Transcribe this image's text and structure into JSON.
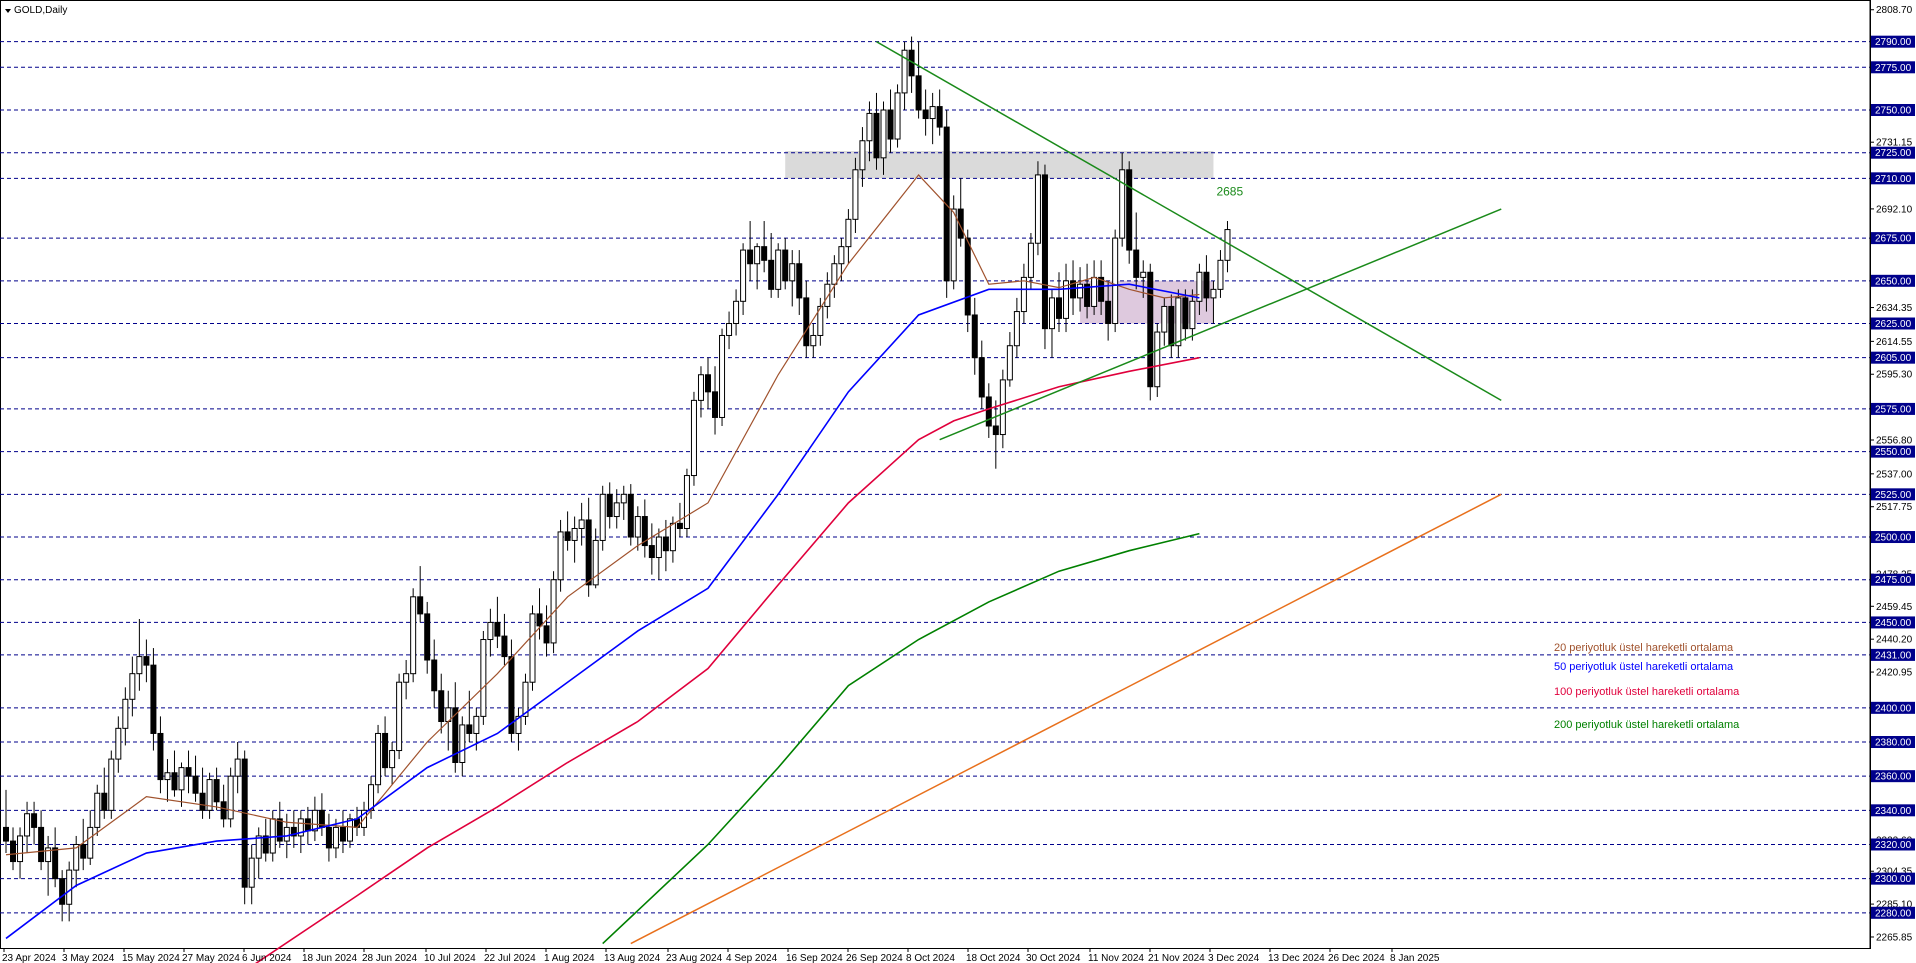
{
  "title": "GOLD,Daily",
  "colors": {
    "ema20": "#a0522d",
    "ema50": "#0000ff",
    "ema100": "#e0003c",
    "ema200": "#008000",
    "trend_green": "#1a8a1a",
    "trend_orange": "#e8701c",
    "resistance_zone": "#d3d3d3",
    "support_zone": "#d8bfd8",
    "level_line": "#00008b"
  },
  "chart_data": {
    "type": "candlestick",
    "symbol": "GOLD",
    "timeframe": "Daily",
    "x_labels": [
      "23 Apr 2024",
      "3 May 2024",
      "15 May 2024",
      "27 May 2024",
      "6 Jun 2024",
      "18 Jun 2024",
      "28 Jun 2024",
      "10 Jul 2024",
      "22 Jul 2024",
      "1 Aug 2024",
      "13 Aug 2024",
      "23 Aug 2024",
      "4 Sep 2024",
      "16 Sep 2024",
      "26 Sep 2024",
      "8 Oct 2024",
      "18 Oct 2024",
      "30 Oct 2024",
      "11 Nov 2024",
      "21 Nov 2024",
      "3 Dec 2024",
      "13 Dec 2024",
      "26 Dec 2024",
      "8 Jan 2025"
    ],
    "y_range": [
      2259.4,
      2814.4
    ],
    "price_axis_labels": [
      "2808.70",
      "2731.15",
      "2692.10",
      "2634.35",
      "2614.55",
      "2595.30",
      "2556.80",
      "2537.00",
      "2517.75",
      "2478.25",
      "2459.45",
      "2440.20",
      "2420.95",
      "2322.60",
      "2304.35",
      "2285.10",
      "2265.85"
    ],
    "price_levels": [
      "2790.00",
      "2775.00",
      "2750.00",
      "2725.00",
      "2710.00",
      "2675.00",
      "2650.00",
      "2625.00",
      "2605.00",
      "2575.00",
      "2550.00",
      "2525.00",
      "2500.00",
      "2475.00",
      "2450.00",
      "2431.00",
      "2400.00",
      "2380.00",
      "2360.00",
      "2340.00",
      "2320.00",
      "2300.00",
      "2280.00"
    ],
    "candles": [
      [
        2330,
        2352,
        2315,
        2322
      ],
      [
        2322,
        2330,
        2305,
        2310
      ],
      [
        2310,
        2330,
        2300,
        2325
      ],
      [
        2325,
        2345,
        2315,
        2338
      ],
      [
        2338,
        2345,
        2320,
        2330
      ],
      [
        2330,
        2340,
        2305,
        2310
      ],
      [
        2310,
        2325,
        2290,
        2318
      ],
      [
        2318,
        2330,
        2295,
        2300
      ],
      [
        2300,
        2305,
        2275,
        2285
      ],
      [
        2285,
        2310,
        2275,
        2305
      ],
      [
        2305,
        2325,
        2295,
        2320
      ],
      [
        2320,
        2335,
        2305,
        2312
      ],
      [
        2312,
        2340,
        2308,
        2330
      ],
      [
        2330,
        2355,
        2325,
        2350
      ],
      [
        2350,
        2365,
        2335,
        2340
      ],
      [
        2340,
        2375,
        2335,
        2370
      ],
      [
        2370,
        2395,
        2362,
        2388
      ],
      [
        2388,
        2412,
        2378,
        2405
      ],
      [
        2405,
        2430,
        2395,
        2420
      ],
      [
        2420,
        2452,
        2410,
        2430
      ],
      [
        2430,
        2440,
        2415,
        2425
      ],
      [
        2425,
        2435,
        2375,
        2385
      ],
      [
        2385,
        2395,
        2350,
        2358
      ],
      [
        2358,
        2370,
        2345,
        2362
      ],
      [
        2362,
        2375,
        2348,
        2352
      ],
      [
        2352,
        2368,
        2342,
        2365
      ],
      [
        2365,
        2375,
        2350,
        2360
      ],
      [
        2360,
        2372,
        2345,
        2350
      ],
      [
        2350,
        2365,
        2335,
        2340
      ],
      [
        2340,
        2362,
        2335,
        2358
      ],
      [
        2358,
        2365,
        2340,
        2345
      ],
      [
        2345,
        2355,
        2330,
        2335
      ],
      [
        2335,
        2365,
        2330,
        2360
      ],
      [
        2360,
        2380,
        2350,
        2370
      ],
      [
        2370,
        2375,
        2285,
        2295
      ],
      [
        2295,
        2320,
        2285,
        2312
      ],
      [
        2312,
        2330,
        2300,
        2325
      ],
      [
        2325,
        2335,
        2310,
        2315
      ],
      [
        2315,
        2340,
        2310,
        2335
      ],
      [
        2335,
        2345,
        2318,
        2322
      ],
      [
        2322,
        2338,
        2312,
        2330
      ],
      [
        2330,
        2340,
        2318,
        2325
      ],
      [
        2325,
        2340,
        2315,
        2335
      ],
      [
        2335,
        2342,
        2320,
        2328
      ],
      [
        2328,
        2348,
        2322,
        2340
      ],
      [
        2340,
        2350,
        2325,
        2330
      ],
      [
        2330,
        2338,
        2310,
        2318
      ],
      [
        2318,
        2335,
        2312,
        2330
      ],
      [
        2330,
        2340,
        2315,
        2322
      ],
      [
        2322,
        2338,
        2318,
        2335
      ],
      [
        2335,
        2342,
        2325,
        2330
      ],
      [
        2330,
        2345,
        2325,
        2340
      ],
      [
        2340,
        2360,
        2335,
        2355
      ],
      [
        2355,
        2390,
        2350,
        2385
      ],
      [
        2385,
        2395,
        2360,
        2365
      ],
      [
        2365,
        2380,
        2355,
        2375
      ],
      [
        2375,
        2420,
        2370,
        2415
      ],
      [
        2415,
        2428,
        2405,
        2420
      ],
      [
        2420,
        2470,
        2415,
        2465
      ],
      [
        2465,
        2483,
        2450,
        2455
      ],
      [
        2455,
        2462,
        2420,
        2428
      ],
      [
        2428,
        2440,
        2400,
        2410
      ],
      [
        2410,
        2420,
        2385,
        2392
      ],
      [
        2392,
        2410,
        2375,
        2400
      ],
      [
        2400,
        2415,
        2362,
        2368
      ],
      [
        2368,
        2395,
        2360,
        2390
      ],
      [
        2390,
        2410,
        2380,
        2385
      ],
      [
        2385,
        2400,
        2375,
        2395
      ],
      [
        2395,
        2445,
        2390,
        2440
      ],
      [
        2440,
        2458,
        2430,
        2450
      ],
      [
        2450,
        2465,
        2435,
        2442
      ],
      [
        2442,
        2455,
        2425,
        2430
      ],
      [
        2430,
        2440,
        2380,
        2385
      ],
      [
        2385,
        2400,
        2375,
        2395
      ],
      [
        2395,
        2420,
        2390,
        2415
      ],
      [
        2415,
        2460,
        2410,
        2455
      ],
      [
        2455,
        2470,
        2440,
        2448
      ],
      [
        2448,
        2460,
        2430,
        2438
      ],
      [
        2438,
        2480,
        2432,
        2475
      ],
      [
        2475,
        2510,
        2468,
        2503
      ],
      [
        2503,
        2515,
        2492,
        2498
      ],
      [
        2498,
        2512,
        2485,
        2505
      ],
      [
        2505,
        2520,
        2495,
        2510
      ],
      [
        2510,
        2523,
        2465,
        2472
      ],
      [
        2472,
        2505,
        2470,
        2498
      ],
      [
        2498,
        2530,
        2492,
        2525
      ],
      [
        2525,
        2532,
        2505,
        2512
      ],
      [
        2512,
        2528,
        2505,
        2520
      ],
      [
        2520,
        2530,
        2510,
        2525
      ],
      [
        2525,
        2531,
        2495,
        2500
      ],
      [
        2500,
        2518,
        2492,
        2512
      ],
      [
        2512,
        2522,
        2488,
        2495
      ],
      [
        2495,
        2508,
        2478,
        2488
      ],
      [
        2488,
        2505,
        2475,
        2500
      ],
      [
        2500,
        2510,
        2480,
        2492
      ],
      [
        2492,
        2512,
        2485,
        2508
      ],
      [
        2508,
        2520,
        2500,
        2505
      ],
      [
        2505,
        2540,
        2500,
        2536
      ],
      [
        2536,
        2585,
        2530,
        2580
      ],
      [
        2580,
        2600,
        2570,
        2595
      ],
      [
        2595,
        2605,
        2575,
        2585
      ],
      [
        2585,
        2600,
        2560,
        2570
      ],
      [
        2570,
        2622,
        2565,
        2618
      ],
      [
        2618,
        2632,
        2610,
        2625
      ],
      [
        2625,
        2645,
        2618,
        2638
      ],
      [
        2638,
        2672,
        2630,
        2668
      ],
      [
        2668,
        2685,
        2650,
        2660
      ],
      [
        2660,
        2672,
        2645,
        2670
      ],
      [
        2670,
        2685,
        2655,
        2662
      ],
      [
        2662,
        2678,
        2640,
        2645
      ],
      [
        2645,
        2672,
        2640,
        2668
      ],
      [
        2668,
        2675,
        2645,
        2650
      ],
      [
        2650,
        2668,
        2635,
        2660
      ],
      [
        2660,
        2668,
        2630,
        2640
      ],
      [
        2640,
        2650,
        2605,
        2612
      ],
      [
        2612,
        2625,
        2605,
        2618
      ],
      [
        2618,
        2640,
        2612,
        2635
      ],
      [
        2635,
        2655,
        2628,
        2648
      ],
      [
        2648,
        2665,
        2640,
        2660
      ],
      [
        2660,
        2675,
        2650,
        2670
      ],
      [
        2670,
        2692,
        2660,
        2686
      ],
      [
        2686,
        2722,
        2678,
        2715
      ],
      [
        2715,
        2740,
        2705,
        2732
      ],
      [
        2732,
        2755,
        2720,
        2748
      ],
      [
        2748,
        2760,
        2715,
        2722
      ],
      [
        2722,
        2755,
        2712,
        2750
      ],
      [
        2750,
        2762,
        2725,
        2733
      ],
      [
        2733,
        2765,
        2728,
        2760
      ],
      [
        2760,
        2790,
        2750,
        2785
      ],
      [
        2785,
        2793,
        2760,
        2770
      ],
      [
        2770,
        2790,
        2745,
        2750
      ],
      [
        2750,
        2762,
        2735,
        2745
      ],
      [
        2745,
        2760,
        2730,
        2752
      ],
      [
        2752,
        2762,
        2735,
        2740
      ],
      [
        2740,
        2750,
        2640,
        2650
      ],
      [
        2650,
        2700,
        2645,
        2692
      ],
      [
        2692,
        2710,
        2670,
        2675
      ],
      [
        2675,
        2680,
        2620,
        2630
      ],
      [
        2630,
        2640,
        2595,
        2605
      ],
      [
        2605,
        2615,
        2575,
        2582
      ],
      [
        2582,
        2590,
        2558,
        2565
      ],
      [
        2565,
        2580,
        2540,
        2560
      ],
      [
        2560,
        2598,
        2552,
        2592
      ],
      [
        2592,
        2620,
        2588,
        2612
      ],
      [
        2612,
        2640,
        2605,
        2632
      ],
      [
        2632,
        2660,
        2625,
        2652
      ],
      [
        2652,
        2678,
        2645,
        2672
      ],
      [
        2672,
        2720,
        2665,
        2712
      ],
      [
        2712,
        2718,
        2610,
        2622
      ],
      [
        2622,
        2645,
        2605,
        2640
      ],
      [
        2640,
        2655,
        2620,
        2628
      ],
      [
        2628,
        2660,
        2620,
        2650
      ],
      [
        2650,
        2662,
        2630,
        2640
      ],
      [
        2640,
        2658,
        2632,
        2648
      ],
      [
        2648,
        2660,
        2628,
        2635
      ],
      [
        2635,
        2662,
        2630,
        2652
      ],
      [
        2652,
        2662,
        2630,
        2638
      ],
      [
        2638,
        2650,
        2615,
        2625
      ],
      [
        2625,
        2680,
        2620,
        2675
      ],
      [
        2675,
        2725,
        2670,
        2715
      ],
      [
        2715,
        2720,
        2660,
        2668
      ],
      [
        2668,
        2690,
        2645,
        2652
      ],
      [
        2652,
        2662,
        2640,
        2655
      ],
      [
        2655,
        2660,
        2580,
        2588
      ],
      [
        2588,
        2625,
        2582,
        2620
      ],
      [
        2620,
        2640,
        2612,
        2635
      ],
      [
        2635,
        2642,
        2605,
        2612
      ],
      [
        2612,
        2645,
        2605,
        2640
      ],
      [
        2640,
        2645,
        2615,
        2622
      ],
      [
        2622,
        2645,
        2615,
        2638
      ],
      [
        2638,
        2660,
        2630,
        2655
      ],
      [
        2655,
        2665,
        2632,
        2640
      ],
      [
        2640,
        2650,
        2625,
        2645
      ],
      [
        2645,
        2668,
        2640,
        2662
      ],
      [
        2662,
        2685,
        2655,
        2680
      ]
    ],
    "emas": [
      {
        "name": "20 periyotluk üstel hareketli ortalama",
        "color": "#a0522d",
        "values": [
          [
            0,
            2314
          ],
          [
            10,
            2318
          ],
          [
            20,
            2348
          ],
          [
            30,
            2342
          ],
          [
            40,
            2333
          ],
          [
            50,
            2330
          ],
          [
            60,
            2380
          ],
          [
            70,
            2420
          ],
          [
            80,
            2465
          ],
          [
            90,
            2495
          ],
          [
            100,
            2520
          ],
          [
            110,
            2595
          ],
          [
            120,
            2660
          ],
          [
            130,
            2712
          ],
          [
            135,
            2690
          ],
          [
            140,
            2648
          ],
          [
            145,
            2650
          ],
          [
            150,
            2646
          ],
          [
            155,
            2652
          ],
          [
            160,
            2645
          ],
          [
            165,
            2640
          ],
          [
            170,
            2642
          ]
        ]
      },
      {
        "name": "50 periyotluk üstel hareketli ortalama",
        "color": "#0000ff",
        "values": [
          [
            0,
            2265
          ],
          [
            10,
            2296
          ],
          [
            20,
            2315
          ],
          [
            30,
            2322
          ],
          [
            40,
            2325
          ],
          [
            50,
            2335
          ],
          [
            60,
            2365
          ],
          [
            70,
            2385
          ],
          [
            80,
            2415
          ],
          [
            90,
            2445
          ],
          [
            100,
            2470
          ],
          [
            110,
            2525
          ],
          [
            120,
            2585
          ],
          [
            130,
            2630
          ],
          [
            140,
            2645
          ],
          [
            150,
            2645
          ],
          [
            160,
            2648
          ],
          [
            170,
            2640
          ]
        ]
      },
      {
        "name": "100 periyotluk üstel hareketli ortalama",
        "color": "#e0003c",
        "values": [
          [
            30,
            2235
          ],
          [
            50,
            2290
          ],
          [
            60,
            2318
          ],
          [
            70,
            2342
          ],
          [
            80,
            2368
          ],
          [
            90,
            2392
          ],
          [
            100,
            2423
          ],
          [
            110,
            2472
          ],
          [
            120,
            2520
          ],
          [
            130,
            2557
          ],
          [
            135,
            2568
          ],
          [
            140,
            2575
          ],
          [
            150,
            2588
          ],
          [
            160,
            2597
          ],
          [
            170,
            2605
          ]
        ]
      },
      {
        "name": "200 periyotluk üstel hareketli ortalama",
        "color": "#008000",
        "values": [
          [
            85,
            2262
          ],
          [
            100,
            2320
          ],
          [
            110,
            2365
          ],
          [
            120,
            2413
          ],
          [
            130,
            2440
          ],
          [
            140,
            2462
          ],
          [
            150,
            2480
          ],
          [
            160,
            2492
          ],
          [
            170,
            2502
          ]
        ]
      }
    ],
    "trendlines": [
      {
        "color": "#1a8a1a",
        "from": [
          124,
          2790
        ],
        "to": [
          213,
          2580
        ]
      },
      {
        "color": "#1a8a1a",
        "from": [
          133,
          2557
        ],
        "to": [
          213,
          2692
        ]
      },
      {
        "color": "#e8701c",
        "from": [
          89,
          2262
        ],
        "to": [
          213,
          2525
        ]
      }
    ],
    "zones": [
      {
        "name": "resistance",
        "x": [
          111,
          172
        ],
        "y": [
          2710,
          2726
        ],
        "color": "#d3d3d3"
      },
      {
        "name": "support",
        "x": [
          153,
          172
        ],
        "y": [
          2625,
          2650
        ],
        "color": "#d8bfd8"
      }
    ],
    "annotation": "2685",
    "legend": [
      {
        "text": "20 periyotluk üstel hareketli ortalama",
        "color": "#a0522d"
      },
      {
        "text": "50 periyotluk üstel hareketli ortalama",
        "color": "#0000ff"
      },
      {
        "text": "100 periyotluk üstel hareketli ortalama",
        "color": "#e0003c"
      },
      {
        "text": "200 periyotluk üstel hareketli ortalama",
        "color": "#008000"
      }
    ]
  }
}
